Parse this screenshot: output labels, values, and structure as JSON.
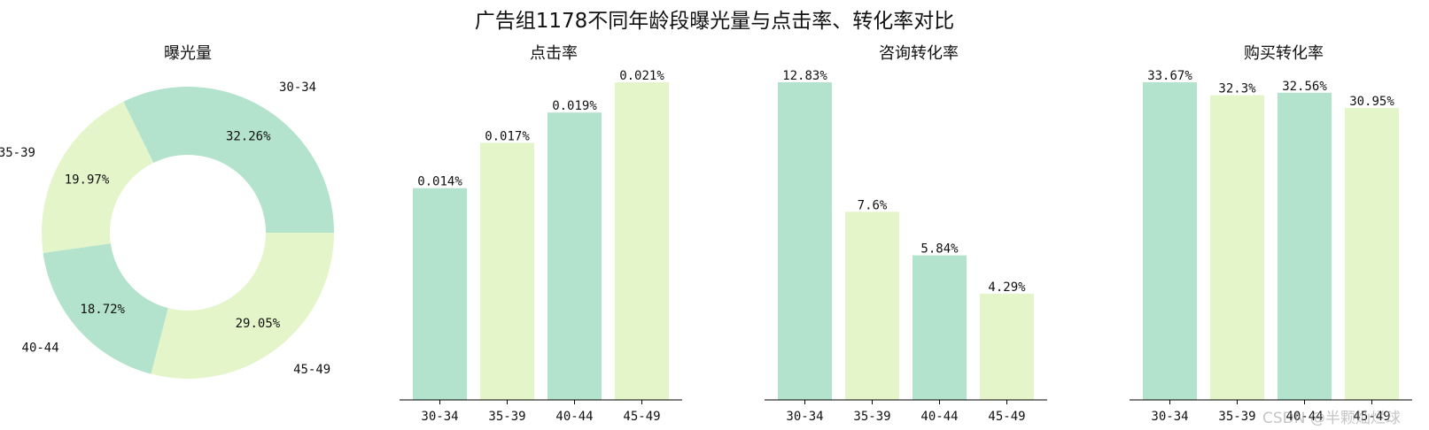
{
  "suptitle": "广告组1178不同年龄段曝光量与点击率、转化率对比",
  "watermark": "CSDN @半颗灿烂球",
  "colors": {
    "mint": "#b3e2cd",
    "cream": "#e4f5c9",
    "axis": "#000000"
  },
  "chart_data": [
    {
      "type": "pie",
      "title": "曝光量",
      "donut": true,
      "categories": [
        "30-34",
        "35-39",
        "40-44",
        "45-49"
      ],
      "values": [
        32.26,
        19.97,
        18.72,
        29.05
      ],
      "value_labels": [
        "32.26%",
        "19.97%",
        "18.72%",
        "29.05%"
      ]
    },
    {
      "type": "bar",
      "title": "点击率",
      "categories": [
        "30-34",
        "35-39",
        "40-44",
        "45-49"
      ],
      "values": [
        0.014,
        0.017,
        0.019,
        0.021
      ],
      "value_labels": [
        "0.014%",
        "0.017%",
        "0.019%",
        "0.021%"
      ]
    },
    {
      "type": "bar",
      "title": "咨询转化率",
      "categories": [
        "30-34",
        "35-39",
        "40-44",
        "45-49"
      ],
      "values": [
        12.83,
        7.6,
        5.84,
        4.29
      ],
      "value_labels": [
        "12.83%",
        "7.6%",
        "5.84%",
        "4.29%"
      ]
    },
    {
      "type": "bar",
      "title": "购买转化率",
      "categories": [
        "30-34",
        "35-39",
        "40-44",
        "45-49"
      ],
      "values": [
        33.67,
        32.3,
        32.56,
        30.95
      ],
      "value_labels": [
        "33.67%",
        "32.3%",
        "32.56%",
        "30.95%"
      ]
    }
  ]
}
